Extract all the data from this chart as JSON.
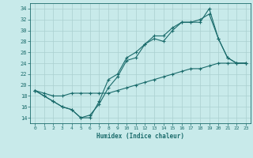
{
  "title": "",
  "xlabel": "Humidex (Indice chaleur)",
  "ylabel": "",
  "bg_color": "#c8eaea",
  "line_color": "#1a6b6b",
  "grid_color": "#aad0d0",
  "xlim": [
    -0.5,
    23.5
  ],
  "ylim": [
    13,
    35
  ],
  "xticks": [
    0,
    1,
    2,
    3,
    4,
    5,
    6,
    7,
    8,
    9,
    10,
    11,
    12,
    13,
    14,
    15,
    16,
    17,
    18,
    19,
    20,
    21,
    22,
    23
  ],
  "yticks": [
    14,
    16,
    18,
    20,
    22,
    24,
    26,
    28,
    30,
    32,
    34
  ],
  "line1_x": [
    0,
    1,
    2,
    3,
    4,
    5,
    6,
    7,
    8,
    9,
    10,
    11,
    12,
    13,
    14,
    15,
    16,
    17,
    18,
    19,
    20,
    21,
    22,
    23
  ],
  "line1_y": [
    19,
    18,
    17,
    16,
    15.5,
    14,
    14.5,
    16.5,
    19.5,
    21.5,
    24.5,
    25,
    27.5,
    28.5,
    28,
    30,
    31.5,
    31.5,
    31.5,
    34,
    28.5,
    25,
    24,
    24
  ],
  "line2_x": [
    0,
    1,
    2,
    3,
    4,
    5,
    6,
    7,
    8,
    9,
    10,
    11,
    12,
    13,
    14,
    15,
    16,
    17,
    18,
    19,
    20,
    21,
    22,
    23
  ],
  "line2_y": [
    19,
    18,
    17,
    16,
    15.5,
    14,
    14,
    17,
    21,
    22,
    25,
    26,
    27.5,
    29,
    29,
    30.5,
    31.5,
    31.5,
    32,
    33,
    28.5,
    25,
    24,
    24
  ],
  "line3_x": [
    0,
    1,
    2,
    3,
    4,
    5,
    6,
    7,
    8,
    9,
    10,
    11,
    12,
    13,
    14,
    15,
    16,
    17,
    18,
    19,
    20,
    21,
    22,
    23
  ],
  "line3_y": [
    19,
    18.5,
    18,
    18,
    18.5,
    18.5,
    18.5,
    18.5,
    18.5,
    19,
    19.5,
    20,
    20.5,
    21,
    21.5,
    22,
    22.5,
    23,
    23,
    23.5,
    24,
    24,
    24,
    24
  ]
}
